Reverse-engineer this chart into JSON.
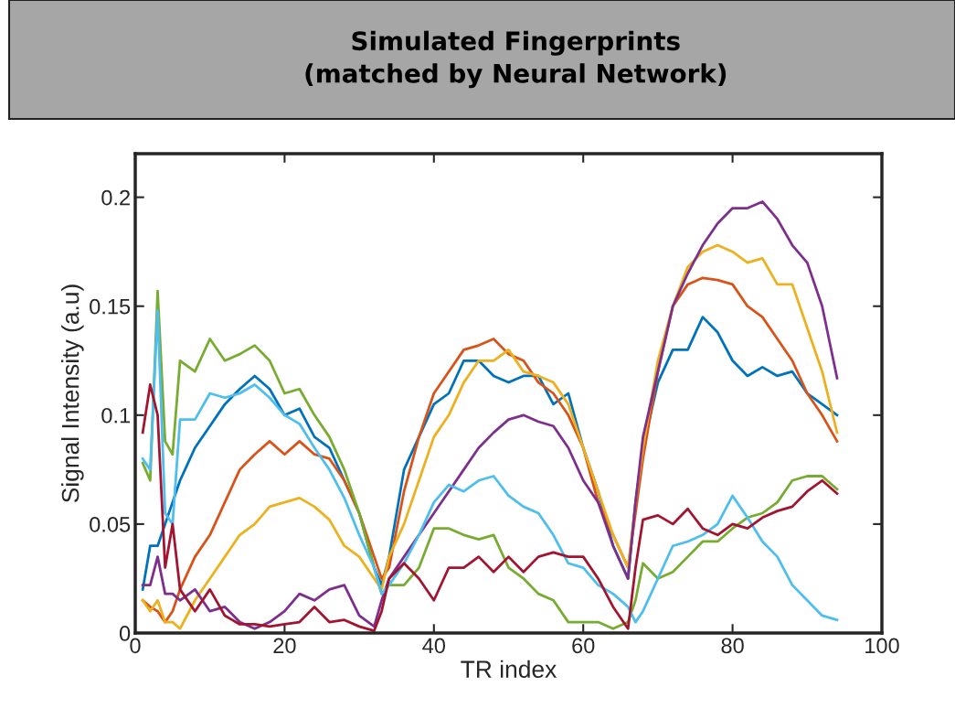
{
  "chart_data": {
    "type": "line",
    "title": "Simulated Fingerprints\n(matched by Neural Network)",
    "xlabel": "TR index",
    "ylabel": "Signal Intensity (a.u)",
    "x": [
      1,
      2,
      3,
      4,
      5,
      6,
      8,
      10,
      12,
      14,
      16,
      18,
      20,
      22,
      24,
      26,
      28,
      30,
      32,
      33,
      34,
      36,
      38,
      40,
      42,
      44,
      46,
      48,
      50,
      52,
      54,
      56,
      58,
      60,
      62,
      64,
      66,
      67,
      68,
      70,
      72,
      74,
      76,
      78,
      80,
      82,
      84,
      86,
      88,
      90,
      92,
      94
    ],
    "xlim": [
      0,
      100
    ],
    "xticks": [
      0,
      20,
      40,
      60,
      80,
      100
    ],
    "ylim": [
      0,
      0.22
    ],
    "yticks": [
      0,
      0.05,
      0.1,
      0.15,
      0.2
    ],
    "grid": false,
    "marker": "none",
    "line_style": "solid",
    "series": [
      {
        "color": "#0072bd",
        "values": [
          0.02,
          0.04,
          0.04,
          0.05,
          0.06,
          0.07,
          0.085,
          0.095,
          0.105,
          0.112,
          0.118,
          0.112,
          0.1,
          0.103,
          0.09,
          0.085,
          0.07,
          0.055,
          0.03,
          0.022,
          0.035,
          0.075,
          0.09,
          0.105,
          0.11,
          0.125,
          0.125,
          0.118,
          0.115,
          0.118,
          0.118,
          0.105,
          0.11,
          0.085,
          0.065,
          0.04,
          0.025,
          0.06,
          0.085,
          0.115,
          0.13,
          0.13,
          0.145,
          0.138,
          0.125,
          0.118,
          0.122,
          0.118,
          0.12,
          0.11,
          0.105,
          0.1
        ]
      },
      {
        "color": "#d95319",
        "values": [
          0.015,
          0.012,
          0.01,
          0.005,
          0.01,
          0.02,
          0.035,
          0.045,
          0.06,
          0.075,
          0.082,
          0.088,
          0.082,
          0.088,
          0.082,
          0.08,
          0.07,
          0.055,
          0.035,
          0.025,
          0.03,
          0.065,
          0.09,
          0.11,
          0.12,
          0.13,
          0.132,
          0.135,
          0.128,
          0.125,
          0.115,
          0.11,
          0.1,
          0.085,
          0.06,
          0.045,
          0.03,
          0.055,
          0.08,
          0.12,
          0.15,
          0.16,
          0.163,
          0.162,
          0.16,
          0.15,
          0.145,
          0.135,
          0.125,
          0.11,
          0.1,
          0.088
        ]
      },
      {
        "color": "#edb120",
        "values": [
          0.015,
          0.01,
          0.015,
          0.005,
          0.005,
          0.002,
          0.015,
          0.025,
          0.035,
          0.045,
          0.05,
          0.058,
          0.06,
          0.062,
          0.058,
          0.052,
          0.04,
          0.035,
          0.025,
          0.02,
          0.035,
          0.05,
          0.07,
          0.09,
          0.1,
          0.115,
          0.125,
          0.125,
          0.13,
          0.12,
          0.118,
          0.115,
          0.105,
          0.085,
          0.065,
          0.045,
          0.03,
          0.06,
          0.085,
          0.125,
          0.15,
          0.168,
          0.175,
          0.178,
          0.175,
          0.17,
          0.172,
          0.16,
          0.16,
          0.14,
          0.12,
          0.092
        ]
      },
      {
        "color": "#7e2f8e",
        "values": [
          0.022,
          0.022,
          0.035,
          0.018,
          0.018,
          0.015,
          0.02,
          0.01,
          0.012,
          0.005,
          0.002,
          0.005,
          0.01,
          0.018,
          0.015,
          0.02,
          0.022,
          0.008,
          0.003,
          0.015,
          0.025,
          0.035,
          0.045,
          0.055,
          0.065,
          0.075,
          0.085,
          0.092,
          0.098,
          0.1,
          0.097,
          0.095,
          0.085,
          0.07,
          0.06,
          0.04,
          0.025,
          0.06,
          0.09,
          0.12,
          0.15,
          0.165,
          0.178,
          0.188,
          0.195,
          0.195,
          0.198,
          0.19,
          0.178,
          0.17,
          0.15,
          0.117
        ]
      },
      {
        "color": "#77ac30",
        "values": [
          0.078,
          0.07,
          0.157,
          0.088,
          0.082,
          0.125,
          0.12,
          0.135,
          0.125,
          0.128,
          0.132,
          0.125,
          0.11,
          0.112,
          0.1,
          0.09,
          0.075,
          0.055,
          0.03,
          0.018,
          0.022,
          0.022,
          0.03,
          0.048,
          0.048,
          0.045,
          0.043,
          0.045,
          0.03,
          0.025,
          0.018,
          0.015,
          0.005,
          0.005,
          0.005,
          0.002,
          0.005,
          0.015,
          0.032,
          0.025,
          0.028,
          0.035,
          0.042,
          0.042,
          0.048,
          0.053,
          0.055,
          0.06,
          0.07,
          0.072,
          0.072,
          0.066
        ]
      },
      {
        "color": "#4dbeee",
        "values": [
          0.08,
          0.075,
          0.148,
          0.055,
          0.05,
          0.098,
          0.098,
          0.11,
          0.108,
          0.11,
          0.114,
          0.108,
          0.1,
          0.096,
          0.085,
          0.075,
          0.062,
          0.045,
          0.03,
          0.018,
          0.022,
          0.032,
          0.045,
          0.06,
          0.068,
          0.065,
          0.07,
          0.072,
          0.063,
          0.058,
          0.055,
          0.045,
          0.032,
          0.03,
          0.022,
          0.018,
          0.012,
          0.005,
          0.01,
          0.025,
          0.04,
          0.042,
          0.045,
          0.05,
          0.063,
          0.053,
          0.042,
          0.035,
          0.022,
          0.015,
          0.008,
          0.006
        ]
      },
      {
        "color": "#a2142f",
        "values": [
          0.092,
          0.114,
          0.1,
          0.03,
          0.05,
          0.02,
          0.01,
          0.02,
          0.008,
          0.004,
          0.004,
          0.003,
          0.004,
          0.005,
          0.012,
          0.005,
          0.006,
          0.003,
          0.001,
          0.01,
          0.025,
          0.032,
          0.025,
          0.015,
          0.03,
          0.03,
          0.035,
          0.028,
          0.035,
          0.028,
          0.035,
          0.037,
          0.035,
          0.035,
          0.025,
          0.012,
          0.002,
          0.03,
          0.052,
          0.054,
          0.05,
          0.057,
          0.048,
          0.045,
          0.05,
          0.048,
          0.053,
          0.056,
          0.058,
          0.065,
          0.07,
          0.064
        ]
      }
    ]
  }
}
